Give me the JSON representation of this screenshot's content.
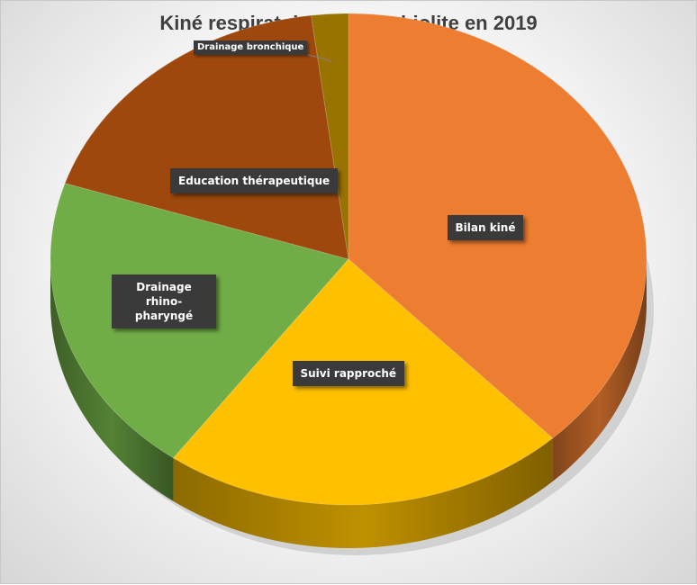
{
  "chart_data": {
    "type": "pie",
    "title": "Kiné respiratoire et bronchiolite en 2019",
    "three_d": true,
    "legend": "none",
    "slices": [
      {
        "label": "Bilan kiné",
        "value": 38,
        "color": "#ED7D31"
      },
      {
        "label": "Suivi rapproché",
        "value": 22,
        "color": "#FFC000"
      },
      {
        "label": "Drainage rhino-pharyngé",
        "value": 20,
        "color": "#70AD47"
      },
      {
        "label": "Education thérapeutique",
        "value": 18,
        "color": "#9E480E"
      },
      {
        "label": "Drainage bronchique",
        "value": 2,
        "color": "#997300"
      }
    ]
  }
}
